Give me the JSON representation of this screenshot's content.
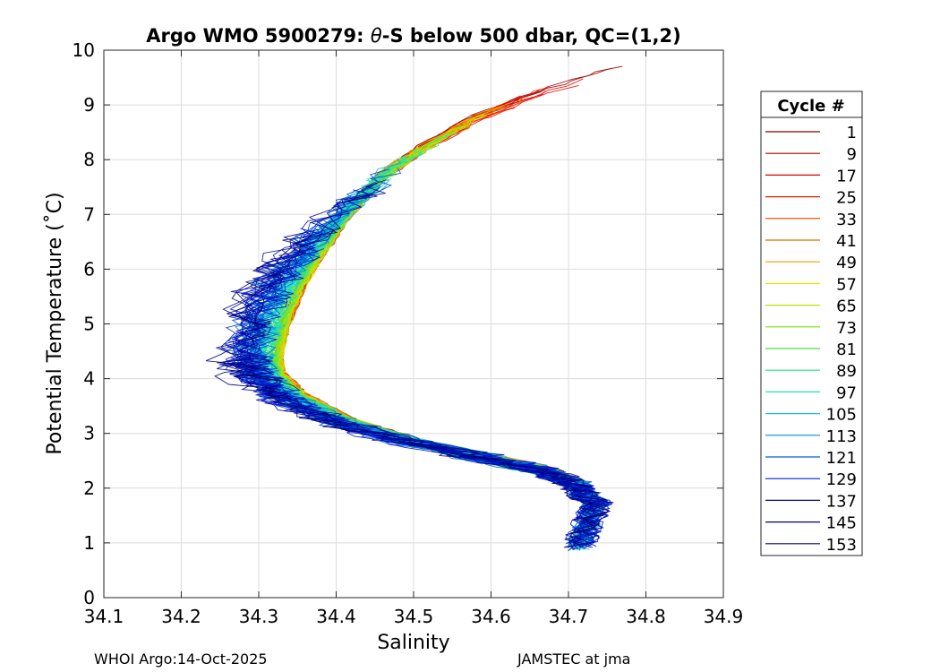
{
  "chart_data": {
    "type": "line",
    "title_prefix": "Argo WMO 5900279: ",
    "title_theta": "θ",
    "title_suffix": "-S below 500 dbar,  QC=(1,2)",
    "xlabel": "Salinity",
    "ylabel": "Potential Temperature (˚C)",
    "xlim": [
      34.1,
      34.9
    ],
    "ylim": [
      0,
      10
    ],
    "xticks": [
      "34.1",
      "34.2",
      "34.3",
      "34.4",
      "34.5",
      "34.6",
      "34.7",
      "34.8",
      "34.9"
    ],
    "yticks": [
      "0",
      "1",
      "2",
      "3",
      "4",
      "5",
      "6",
      "7",
      "8",
      "9",
      "10"
    ],
    "grid": true,
    "legend": {
      "title": "Cycle #",
      "placement": "right",
      "entries": [
        "1",
        "9",
        "17",
        "25",
        "33",
        "41",
        "49",
        "57",
        "65",
        "73",
        "81",
        "89",
        "97",
        "105",
        "113",
        "121",
        "129",
        "137",
        "145",
        "153"
      ],
      "colors": [
        "#800000",
        "#b00000",
        "#e00000",
        "#e81c00",
        "#e04000",
        "#d07000",
        "#e0a000",
        "#e8e000",
        "#c0e000",
        "#80e000",
        "#40e040",
        "#20e080",
        "#20e0c0",
        "#20c0e0",
        "#0090d0",
        "#0060d0",
        "#0020d0",
        "#0000a0",
        "#000070",
        "#000090"
      ]
    },
    "mean_profile": [
      [
        34.8,
        9.85
      ],
      [
        34.74,
        9.55
      ],
      [
        34.66,
        9.2
      ],
      [
        34.58,
        8.75
      ],
      [
        34.51,
        8.2
      ],
      [
        34.46,
        7.7
      ],
      [
        34.42,
        7.1
      ],
      [
        34.385,
        6.4
      ],
      [
        34.355,
        5.7
      ],
      [
        34.335,
        5.0
      ],
      [
        34.325,
        4.4
      ],
      [
        34.33,
        4.05
      ],
      [
        34.36,
        3.65
      ],
      [
        34.42,
        3.2
      ],
      [
        34.5,
        2.85
      ],
      [
        34.6,
        2.55
      ],
      [
        34.68,
        2.3
      ],
      [
        34.72,
        2.05
      ],
      [
        34.735,
        1.75
      ],
      [
        34.725,
        1.35
      ],
      [
        34.71,
        0.82
      ]
    ]
  },
  "footer": {
    "left": "WHOI Argo:14-Oct-2025",
    "right": "JAMSTEC at jma"
  }
}
